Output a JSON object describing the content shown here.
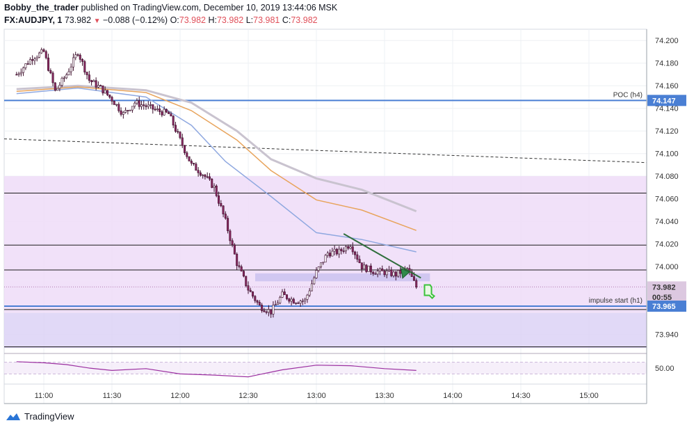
{
  "header": {
    "author": "Bobby_the_trader",
    "published_text": "published on TradingView.com, December 10, 2019 13:44:06 MSK",
    "symbol": "FX:AUDJPY, 1",
    "last_price": "73.982",
    "change_arrow": "▼",
    "change": "−0.088 (−0.12%)",
    "o_label": "O:",
    "o_value": "73.982",
    "h_label": "H:",
    "h_value": "73.982",
    "l_label": "L:",
    "l_value": "73.981",
    "c_label": "C:",
    "c_value": "73.982"
  },
  "footer": {
    "brand": "TradingView"
  },
  "colors": {
    "up_candle": "#ffffff",
    "down_candle": "#8a2a62",
    "wick": "#3b0d2a",
    "zone_light": "#eedcf8",
    "zone_dark": "#dcd2f6",
    "poc_line": "#4a7fd4",
    "ema_blue": "#8fa8e0",
    "ema_orange": "#e8a45c",
    "ema_grey": "#c9c3cf",
    "rsi_line": "#9b2fa0",
    "trendline": "#2f6e3c",
    "price_red": "#e0505a"
  },
  "chart_data": {
    "type": "candlestick",
    "symbol": "FX:AUDJPY",
    "interval": "1",
    "ylim": [
      73.925,
      74.21
    ],
    "y_ticks": [
      "74.200",
      "74.180",
      "74.160",
      "74.140",
      "74.120",
      "74.100",
      "74.080",
      "74.060",
      "74.040",
      "74.020",
      "74.000",
      "73.940"
    ],
    "x_ticks": [
      "11:00",
      "11:30",
      "12:00",
      "12:30",
      "13:00",
      "13:30",
      "14:00",
      "14:30",
      "15:00"
    ],
    "price_badges": [
      {
        "label": "74.147",
        "value": 74.147,
        "color": "#4a7fd4"
      },
      {
        "label": "73.982",
        "value": 73.982,
        "color": "#dcc8e0"
      },
      {
        "label": "00:55",
        "value": 73.973,
        "color": "#dcc8e0"
      },
      {
        "label": "73.965",
        "value": 73.965,
        "color": "#4a7fd4"
      }
    ],
    "horizontal_lines": [
      {
        "label": "POC (h4)",
        "value": 74.147
      },
      {
        "label": "impulse start (h1)",
        "value": 73.965
      }
    ],
    "black_levels": [
      74.065,
      74.019,
      73.997,
      73.962,
      73.929
    ],
    "zones": [
      {
        "from": 73.988,
        "to": 74.08
      },
      {
        "from": 73.959,
        "to": 73.988
      },
      {
        "from": 73.928,
        "to": 73.959
      }
    ],
    "dashed_trend": {
      "start": [
        "10:48",
        74.113
      ],
      "end": [
        "15:40",
        74.092
      ]
    },
    "trendline": {
      "start": [
        "13:12",
        74.029
      ],
      "end": [
        "13:46",
        73.99
      ]
    },
    "moving_averages": [
      {
        "color": "grey",
        "points": [
          [
            "10:48",
            74.157
          ],
          [
            "11:15",
            74.16
          ],
          [
            "11:45",
            74.156
          ],
          [
            "12:05",
            74.145
          ],
          [
            "12:25",
            74.12
          ],
          [
            "12:40",
            74.095
          ],
          [
            "13:00",
            74.078
          ],
          [
            "13:20",
            74.068
          ],
          [
            "13:44",
            74.049
          ]
        ]
      },
      {
        "color": "orange",
        "points": [
          [
            "10:48",
            74.155
          ],
          [
            "11:15",
            74.159
          ],
          [
            "11:45",
            74.154
          ],
          [
            "12:05",
            74.138
          ],
          [
            "12:25",
            74.112
          ],
          [
            "12:40",
            74.085
          ],
          [
            "13:00",
            74.059
          ],
          [
            "13:20",
            74.05
          ],
          [
            "13:44",
            74.032
          ]
        ]
      },
      {
        "color": "blue",
        "points": [
          [
            "10:48",
            74.153
          ],
          [
            "11:15",
            74.158
          ],
          [
            "11:45",
            74.15
          ],
          [
            "12:05",
            74.125
          ],
          [
            "12:20",
            74.093
          ],
          [
            "12:40",
            74.062
          ],
          [
            "13:00",
            74.03
          ],
          [
            "13:20",
            74.024
          ],
          [
            "13:44",
            74.013
          ]
        ]
      }
    ],
    "candles_close_path": [
      [
        "10:48",
        74.17
      ],
      [
        "10:55",
        74.185
      ],
      [
        "11:00",
        74.19
      ],
      [
        "11:05",
        74.155
      ],
      [
        "11:10",
        74.17
      ],
      [
        "11:15",
        74.19
      ],
      [
        "11:20",
        74.165
      ],
      [
        "11:25",
        74.158
      ],
      [
        "11:30",
        74.148
      ],
      [
        "11:35",
        74.135
      ],
      [
        "11:40",
        74.145
      ],
      [
        "11:45",
        74.142
      ],
      [
        "11:50",
        74.138
      ],
      [
        "11:55",
        74.135
      ],
      [
        "12:00",
        74.112
      ],
      [
        "12:05",
        74.09
      ],
      [
        "12:10",
        74.082
      ],
      [
        "12:15",
        74.07
      ],
      [
        "12:20",
        74.04
      ],
      [
        "12:25",
        74.003
      ],
      [
        "12:30",
        73.98
      ],
      [
        "12:35",
        73.965
      ],
      [
        "12:40",
        73.96
      ],
      [
        "12:45",
        73.975
      ],
      [
        "12:50",
        73.97
      ],
      [
        "12:55",
        73.97
      ],
      [
        "13:00",
        73.995
      ],
      [
        "13:05",
        74.012
      ],
      [
        "13:10",
        74.013
      ],
      [
        "13:15",
        74.02
      ],
      [
        "13:20",
        74.0
      ],
      [
        "13:25",
        73.996
      ],
      [
        "13:30",
        73.995
      ],
      [
        "13:35",
        73.993
      ],
      [
        "13:40",
        73.998
      ],
      [
        "13:44",
        73.982
      ]
    ],
    "rsi": {
      "label": "50.00",
      "points": [
        [
          "10:48",
          72
        ],
        [
          "11:00",
          68
        ],
        [
          "11:10",
          62
        ],
        [
          "11:20",
          50
        ],
        [
          "11:30",
          42
        ],
        [
          "11:45",
          48
        ],
        [
          "12:00",
          30
        ],
        [
          "12:15",
          26
        ],
        [
          "12:30",
          20
        ],
        [
          "12:45",
          44
        ],
        [
          "13:00",
          60
        ],
        [
          "13:15",
          58
        ],
        [
          "13:30",
          48
        ],
        [
          "13:44",
          42
        ]
      ]
    }
  }
}
